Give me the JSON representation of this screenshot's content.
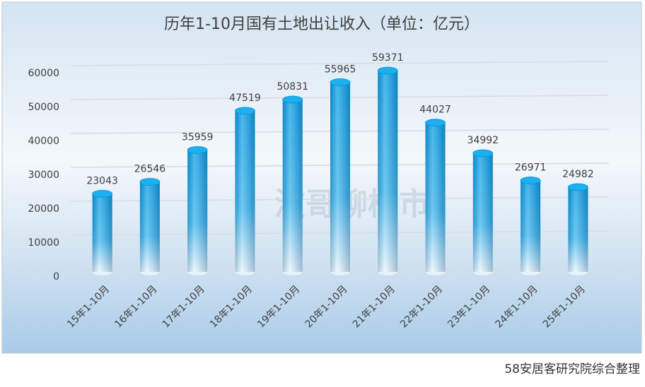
{
  "chart_data": {
    "type": "bar",
    "title": "历年1-10月国有土地出让收入（单位：亿元）",
    "watermark": "波哥聊楼市",
    "source": "58安居客研究院综合整理",
    "categories": [
      "15年1-10月",
      "16年1-10月",
      "17年1-10月",
      "18年1-10月",
      "19年1-10月",
      "20年1-10月",
      "21年1-10月",
      "22年1-10月",
      "23年1-10月",
      "24年1-10月",
      "25年1-10月"
    ],
    "values": [
      23043,
      26546,
      35959,
      47519,
      50831,
      55965,
      59371,
      44027,
      34992,
      26971,
      24982
    ],
    "color": "#0a9fe6",
    "ylim": [
      0,
      60000
    ],
    "yticks": [
      0,
      10000,
      20000,
      30000,
      40000,
      50000,
      60000
    ],
    "grid": true
  }
}
